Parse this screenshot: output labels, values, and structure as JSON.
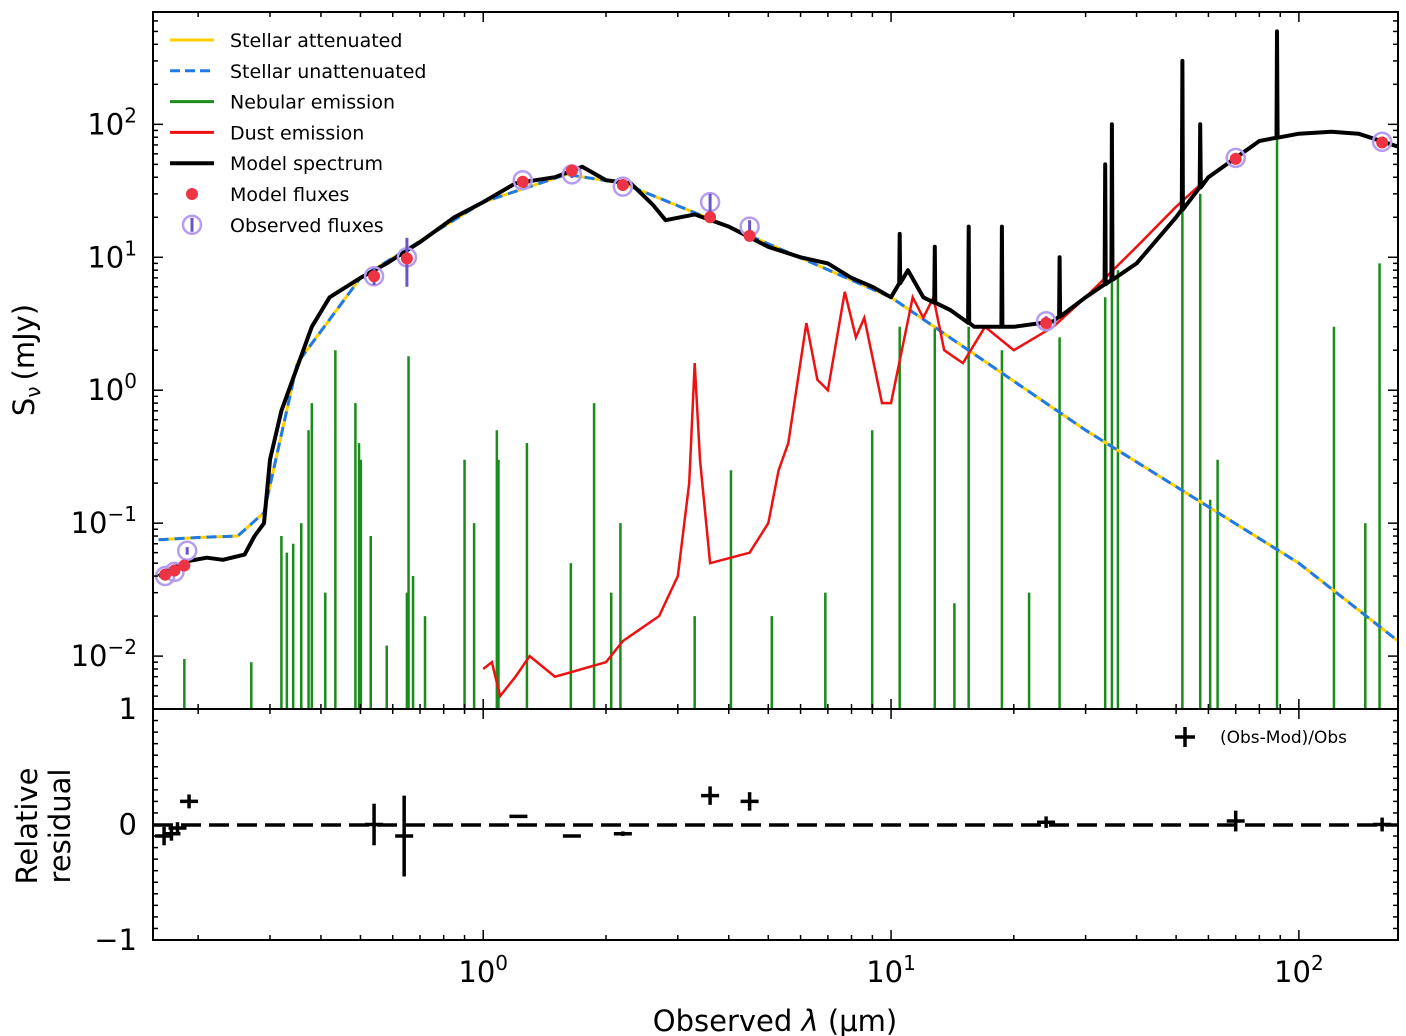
{
  "chart_data": [
    {
      "type": "line",
      "panel": "sed",
      "xscale": "log",
      "yscale": "log",
      "xlim": [
        0.155,
        175
      ],
      "ylim": [
        0.004,
        700
      ],
      "ylabel_main": "S",
      "ylabel_sub": "ν",
      "ylabel_unit": "(mJy)",
      "y_ticks": [
        {
          "base": "10",
          "exp": "2",
          "value": 100
        },
        {
          "base": "10",
          "exp": "1",
          "value": 10
        },
        {
          "base": "10",
          "exp": "0",
          "value": 1
        },
        {
          "base": "10",
          "exp": "−1",
          "value": 0.1
        },
        {
          "base": "10",
          "exp": "−2",
          "value": 0.01
        }
      ],
      "legend": {
        "position": "upper-left",
        "entries": [
          {
            "label": "Stellar attenuated",
            "color": "#FFD000",
            "style": "solid"
          },
          {
            "label": "Stellar unattenuated",
            "color": "#1F7AE8",
            "style": "dashed"
          },
          {
            "label": "Nebular emission",
            "color": "#1A8C1A",
            "style": "solid"
          },
          {
            "label": "Dust emission",
            "color": "#EE1111",
            "style": "solid"
          },
          {
            "label": "Model spectrum",
            "color": "#000000",
            "style": "solid-thick"
          },
          {
            "label": "Model fluxes",
            "color": "#EE3344",
            "style": "dot"
          },
          {
            "label": "Observed fluxes",
            "color": "#B59CF0",
            "style": "open-circle-errorbar"
          }
        ]
      },
      "series": [
        {
          "name": "Model spectrum",
          "points": [
            [
              0.16,
              0.04
            ],
            [
              0.17,
              0.045
            ],
            [
              0.19,
              0.052
            ],
            [
              0.21,
              0.055
            ],
            [
              0.23,
              0.053
            ],
            [
              0.26,
              0.058
            ],
            [
              0.275,
              0.08
            ],
            [
              0.29,
              0.1
            ],
            [
              0.3,
              0.3
            ],
            [
              0.32,
              0.7
            ],
            [
              0.35,
              1.5
            ],
            [
              0.38,
              3
            ],
            [
              0.42,
              5
            ],
            [
              0.5,
              7
            ],
            [
              0.58,
              9
            ],
            [
              0.7,
              13
            ],
            [
              0.85,
              20
            ],
            [
              1.0,
              26
            ],
            [
              1.2,
              36
            ],
            [
              1.5,
              40
            ],
            [
              1.75,
              48
            ],
            [
              2.0,
              38
            ],
            [
              2.3,
              36
            ],
            [
              2.6,
              25
            ],
            [
              2.8,
              19
            ],
            [
              3.3,
              21
            ],
            [
              4.0,
              17
            ],
            [
              5.0,
              12
            ],
            [
              6.0,
              10
            ],
            [
              7.0,
              9
            ],
            [
              8.0,
              7
            ],
            [
              9.0,
              6
            ],
            [
              10.0,
              5
            ],
            [
              11.0,
              8
            ],
            [
              12.0,
              5
            ],
            [
              14.0,
              4
            ],
            [
              16.0,
              3
            ],
            [
              20.0,
              3
            ],
            [
              25.0,
              3.3
            ],
            [
              30.0,
              5
            ],
            [
              40.0,
              9
            ],
            [
              50.0,
              20
            ],
            [
              60.0,
              40
            ],
            [
              80.0,
              75
            ],
            [
              100.0,
              85
            ],
            [
              120.0,
              88
            ],
            [
              140.0,
              85
            ],
            [
              175.0,
              68
            ]
          ]
        },
        {
          "name": "Stellar unattenuated",
          "points": [
            [
              0.16,
              0.075
            ],
            [
              0.2,
              0.078
            ],
            [
              0.25,
              0.08
            ],
            [
              0.29,
              0.12
            ],
            [
              0.35,
              1.6
            ],
            [
              0.5,
              7
            ],
            [
              1.0,
              26
            ],
            [
              1.6,
              42
            ],
            [
              2.2,
              36
            ],
            [
              4.0,
              17
            ],
            [
              10.0,
              5
            ],
            [
              30.0,
              0.5
            ],
            [
              100.0,
              0.05
            ],
            [
              175.0,
              0.013
            ]
          ]
        },
        {
          "name": "Dust emission",
          "points": [
            [
              1.0,
              0.008
            ],
            [
              1.05,
              0.009
            ],
            [
              1.1,
              0.005
            ],
            [
              1.2,
              0.007
            ],
            [
              1.3,
              0.01
            ],
            [
              1.5,
              0.007
            ],
            [
              2.0,
              0.009
            ],
            [
              2.2,
              0.013
            ],
            [
              2.7,
              0.02
            ],
            [
              3.0,
              0.04
            ],
            [
              3.2,
              0.2
            ],
            [
              3.3,
              1.6
            ],
            [
              3.4,
              0.3
            ],
            [
              3.6,
              0.05
            ],
            [
              4.5,
              0.06
            ],
            [
              5.0,
              0.1
            ],
            [
              5.3,
              0.25
            ],
            [
              5.6,
              0.4
            ],
            [
              6.2,
              3.2
            ],
            [
              6.6,
              1.2
            ],
            [
              7.0,
              1.0
            ],
            [
              7.7,
              5.5
            ],
            [
              8.2,
              2.5
            ],
            [
              8.6,
              3.5
            ],
            [
              9.5,
              0.8
            ],
            [
              10.0,
              0.8
            ],
            [
              11.3,
              5.0
            ],
            [
              12.0,
              3.5
            ],
            [
              12.7,
              5.0
            ],
            [
              13.5,
              2.0
            ],
            [
              15.0,
              1.6
            ],
            [
              17.0,
              3.0
            ],
            [
              20.0,
              2.0
            ],
            [
              25.0,
              3.0
            ],
            [
              30.0,
              5.0
            ],
            [
              40.0,
              12
            ],
            [
              50.0,
              24
            ],
            [
              60.0,
              40
            ],
            [
              80.0,
              75
            ],
            [
              100.0,
              85
            ],
            [
              120.0,
              88
            ],
            [
              140.0,
              85
            ],
            [
              175.0,
              68
            ]
          ]
        }
      ],
      "nebular_lines": [
        {
          "x": 0.185,
          "y": 0.0095
        },
        {
          "x": 0.27,
          "y": 0.009
        },
        {
          "x": 0.32,
          "y": 0.08
        },
        {
          "x": 0.33,
          "y": 0.06
        },
        {
          "x": 0.342,
          "y": 0.07
        },
        {
          "x": 0.358,
          "y": 0.1
        },
        {
          "x": 0.373,
          "y": 0.5
        },
        {
          "x": 0.38,
          "y": 0.8
        },
        {
          "x": 0.41,
          "y": 0.03
        },
        {
          "x": 0.434,
          "y": 2.0
        },
        {
          "x": 0.486,
          "y": 0.8
        },
        {
          "x": 0.496,
          "y": 0.4
        },
        {
          "x": 0.501,
          "y": 0.3
        },
        {
          "x": 0.53,
          "y": 0.08
        },
        {
          "x": 0.58,
          "y": 0.012
        },
        {
          "x": 0.65,
          "y": 0.03
        },
        {
          "x": 0.656,
          "y": 1.8
        },
        {
          "x": 0.673,
          "y": 0.04
        },
        {
          "x": 0.72,
          "y": 0.02
        },
        {
          "x": 0.9,
          "y": 0.3
        },
        {
          "x": 0.95,
          "y": 0.1
        },
        {
          "x": 1.08,
          "y": 0.5
        },
        {
          "x": 1.09,
          "y": 0.3
        },
        {
          "x": 1.28,
          "y": 0.4
        },
        {
          "x": 1.64,
          "y": 0.05
        },
        {
          "x": 1.87,
          "y": 0.8
        },
        {
          "x": 2.06,
          "y": 0.03
        },
        {
          "x": 2.17,
          "y": 0.1
        },
        {
          "x": 3.3,
          "y": 0.02
        },
        {
          "x": 4.05,
          "y": 0.25
        },
        {
          "x": 5.1,
          "y": 0.02
        },
        {
          "x": 6.9,
          "y": 0.03
        },
        {
          "x": 8.99,
          "y": 0.5
        },
        {
          "x": 10.5,
          "y": 3.0
        },
        {
          "x": 12.8,
          "y": 3.0
        },
        {
          "x": 14.3,
          "y": 0.025
        },
        {
          "x": 15.5,
          "y": 3.0
        },
        {
          "x": 18.7,
          "y": 2.0
        },
        {
          "x": 21.8,
          "y": 0.03
        },
        {
          "x": 25.9,
          "y": 2.5
        },
        {
          "x": 33.5,
          "y": 5.0
        },
        {
          "x": 34.8,
          "y": 10.0
        },
        {
          "x": 36.0,
          "y": 8.0
        },
        {
          "x": 51.8,
          "y": 30.0
        },
        {
          "x": 57.3,
          "y": 30.0
        },
        {
          "x": 60.6,
          "y": 0.15
        },
        {
          "x": 63.2,
          "y": 0.3
        },
        {
          "x": 88.4,
          "y": 80.0
        },
        {
          "x": 121.9,
          "y": 3.0
        },
        {
          "x": 145.5,
          "y": 0.1
        },
        {
          "x": 157.7,
          "y": 9.0
        }
      ],
      "model_spectrum_spikes": [
        {
          "x": 10.5,
          "y": 15
        },
        {
          "x": 12.8,
          "y": 12
        },
        {
          "x": 15.5,
          "y": 17
        },
        {
          "x": 18.7,
          "y": 17
        },
        {
          "x": 25.9,
          "y": 10
        },
        {
          "x": 33.5,
          "y": 50
        },
        {
          "x": 34.8,
          "y": 100
        },
        {
          "x": 51.8,
          "y": 300
        },
        {
          "x": 57.3,
          "y": 100
        },
        {
          "x": 88.4,
          "y": 500
        }
      ],
      "model_fluxes": [
        {
          "x": 0.166,
          "y": 0.041
        },
        {
          "x": 0.175,
          "y": 0.044
        },
        {
          "x": 0.185,
          "y": 0.048
        },
        {
          "x": 0.54,
          "y": 7.2
        },
        {
          "x": 0.65,
          "y": 9.8
        },
        {
          "x": 1.25,
          "y": 37
        },
        {
          "x": 1.65,
          "y": 45
        },
        {
          "x": 2.2,
          "y": 35
        },
        {
          "x": 3.6,
          "y": 20
        },
        {
          "x": 4.5,
          "y": 14.5
        },
        {
          "x": 24.0,
          "y": 3.2
        },
        {
          "x": 70.0,
          "y": 55
        },
        {
          "x": 160.0,
          "y": 73
        }
      ],
      "observed_fluxes": [
        {
          "x": 0.166,
          "y": 0.04,
          "err": 0.003
        },
        {
          "x": 0.175,
          "y": 0.043,
          "err": 0.003
        },
        {
          "x": 0.188,
          "y": 0.062,
          "err": 0.004
        },
        {
          "x": 0.54,
          "y": 7.2,
          "err": 1.0
        },
        {
          "x": 0.65,
          "y": 10.0,
          "err": 4.0
        },
        {
          "x": 1.25,
          "y": 38,
          "err": 2.0
        },
        {
          "x": 1.65,
          "y": 42,
          "err": 2.5
        },
        {
          "x": 2.2,
          "y": 34,
          "err": 2.0
        },
        {
          "x": 3.6,
          "y": 26,
          "err": 4.0
        },
        {
          "x": 4.5,
          "y": 17,
          "err": 2.0
        },
        {
          "x": 24.0,
          "y": 3.3,
          "err": 0.3
        },
        {
          "x": 70.0,
          "y": 56,
          "err": 5.0
        },
        {
          "x": 160.0,
          "y": 74,
          "err": 6.0
        }
      ]
    },
    {
      "type": "scatter",
      "panel": "residual",
      "xscale": "log",
      "xlim": [
        0.155,
        175
      ],
      "ylim": [
        -1,
        1
      ],
      "xlabel_prefix": "Observed ",
      "xlabel_var": "λ",
      "xlabel_unit": " (μm)",
      "ylabel_line1": "Relative",
      "ylabel_line2": "residual",
      "x_ticks": [
        {
          "base": "10",
          "exp": "0",
          "value": 1
        },
        {
          "base": "10",
          "exp": "1",
          "value": 10
        },
        {
          "base": "10",
          "exp": "2",
          "value": 100
        }
      ],
      "y_ticks": [
        {
          "label": "1",
          "value": 1
        },
        {
          "label": "0",
          "value": 0
        },
        {
          "label": "−1",
          "value": -1
        }
      ],
      "legend": {
        "position": "upper-right",
        "entries": [
          {
            "label": "(Obs-Mod)/Obs",
            "style": "plus"
          }
        ]
      },
      "residuals": [
        {
          "x": 0.165,
          "y": -0.1,
          "yerr": 0.08
        },
        {
          "x": 0.172,
          "y": -0.08,
          "yerr": 0.06
        },
        {
          "x": 0.178,
          "y": -0.03,
          "yerr": 0.05
        },
        {
          "x": 0.19,
          "y": 0.2,
          "yerr": 0.06
        },
        {
          "x": 0.54,
          "y": 0.0,
          "yerr": 0.18
        },
        {
          "x": 0.64,
          "y": -0.1,
          "yerr": 0.35
        },
        {
          "x": 1.22,
          "y": 0.07,
          "yerr": 0.01
        },
        {
          "x": 1.65,
          "y": -0.1,
          "yerr": 0.01
        },
        {
          "x": 2.2,
          "y": -0.08,
          "yerr": 0.02
        },
        {
          "x": 3.6,
          "y": 0.25,
          "yerr": 0.08
        },
        {
          "x": 4.5,
          "y": 0.2,
          "yerr": 0.08
        },
        {
          "x": 24.0,
          "y": 0.02,
          "yerr": 0.05
        },
        {
          "x": 70.0,
          "y": 0.03,
          "yerr": 0.09
        },
        {
          "x": 160.0,
          "y": 0.0,
          "yerr": 0.06
        }
      ]
    }
  ]
}
